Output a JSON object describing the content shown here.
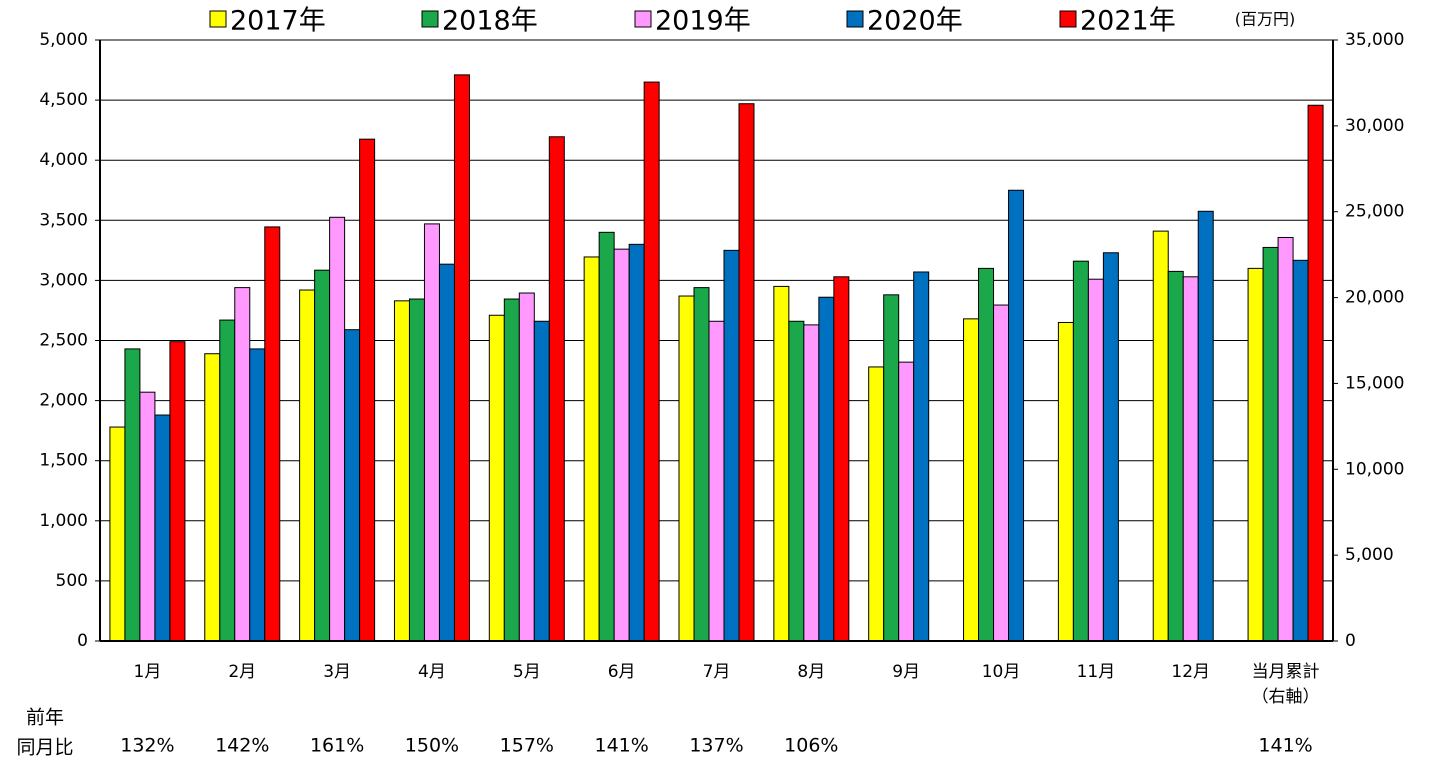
{
  "chart_data": {
    "type": "bar",
    "unit_label": "(百万円)",
    "categories": [
      "1月",
      "2月",
      "3月",
      "4月",
      "5月",
      "6月",
      "7月",
      "8月",
      "9月",
      "10月",
      "11月",
      "12月"
    ],
    "series": [
      {
        "name": "2017年",
        "color": "#ffff00",
        "values": [
          1780,
          2390,
          2920,
          2830,
          2710,
          3195,
          2870,
          2950,
          2280,
          2680,
          2650,
          3410
        ]
      },
      {
        "name": "2018年",
        "color": "#1aa84a",
        "values": [
          2430,
          2670,
          3085,
          2845,
          2845,
          3400,
          2940,
          2660,
          2880,
          3100,
          3160,
          3075
        ]
      },
      {
        "name": "2019年",
        "color": "#ff99ff",
        "values": [
          2070,
          2940,
          3525,
          3470,
          2895,
          3260,
          2660,
          2630,
          2320,
          2795,
          3010,
          3030
        ]
      },
      {
        "name": "2020年",
        "color": "#0070c0",
        "values": [
          1880,
          2430,
          2590,
          3135,
          2660,
          3300,
          3250,
          2860,
          3070,
          3750,
          3230,
          3575
        ]
      },
      {
        "name": "2021年",
        "color": "#ff0000",
        "values": [
          2490,
          3445,
          4175,
          4710,
          4195,
          4650,
          4470,
          3030,
          null,
          null,
          null,
          null
        ]
      }
    ],
    "cumulative": {
      "category": "当月累計（右軸）",
      "axis": "y2",
      "values": [
        21700,
        22920,
        23500,
        22170,
        31200
      ]
    },
    "ylim": [
      0,
      5000
    ],
    "yticks": [
      0,
      500,
      {
        "value": 1000,
        "label": "1,000"
      },
      {
        "value": 1500,
        "label": "1,500"
      },
      {
        "value": 2000,
        "label": "2,000"
      },
      {
        "value": 2500,
        "label": "2,500"
      },
      {
        "value": 3000,
        "label": "3,000"
      },
      {
        "value": 3500,
        "label": "3,500"
      },
      {
        "value": 4000,
        "label": "4,000"
      },
      {
        "value": 4500,
        "label": "4,500"
      },
      {
        "value": 5000,
        "label": "5,000"
      }
    ],
    "y2lim": [
      0,
      35000
    ],
    "y2ticks": [
      0,
      {
        "value": 5000,
        "label": "5,000"
      },
      {
        "value": 10000,
        "label": "10,000"
      },
      {
        "value": 15000,
        "label": "15,000"
      },
      {
        "value": 20000,
        "label": "20,000"
      },
      {
        "value": 25000,
        "label": "25,000"
      },
      {
        "value": 30000,
        "label": "30,000"
      },
      {
        "value": 35000,
        "label": "35,000"
      }
    ],
    "grid": true,
    "yoy": {
      "label": [
        "前年",
        "同月比"
      ],
      "values": [
        132,
        142,
        161,
        150,
        157,
        141,
        137,
        106,
        null,
        null,
        null,
        null,
        141
      ],
      "value_labels": [
        "132%",
        "142%",
        "161%",
        "150%",
        "157%",
        "141%",
        "137%",
        "106%",
        null,
        null,
        null,
        null,
        "141%"
      ]
    }
  }
}
